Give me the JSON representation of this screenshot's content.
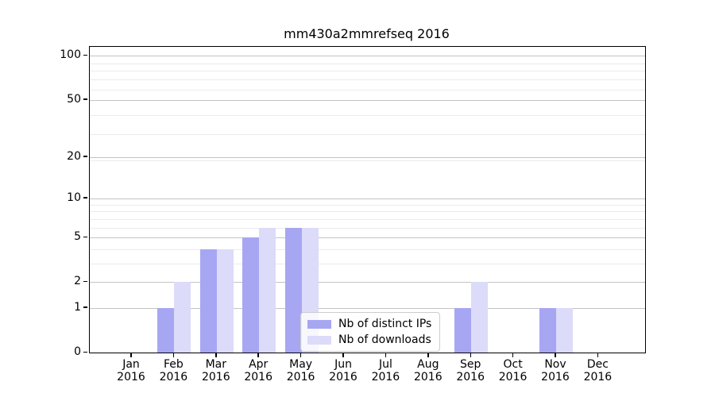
{
  "figure": {
    "title": "mm430a2mmrefseq 2016"
  },
  "chart_data": {
    "type": "bar",
    "title": "mm430a2mmrefseq 2016",
    "x_categories": [
      "Jan",
      "Feb",
      "Mar",
      "Apr",
      "May",
      "Jun",
      "Jul",
      "Aug",
      "Sep",
      "Oct",
      "Nov",
      "Dec"
    ],
    "x_year": "2016",
    "series": [
      {
        "name": "Nb of distinct IPs",
        "color": "#a7a6f3",
        "values": [
          0,
          1,
          4,
          5,
          6,
          0,
          0,
          0,
          1,
          0,
          1,
          0
        ]
      },
      {
        "name": "Nb of downloads",
        "color": "#dcdbf9",
        "values": [
          0,
          2,
          4,
          6,
          6,
          0,
          0,
          0,
          2,
          0,
          1,
          0
        ]
      }
    ],
    "y_axis": {
      "scale": "log10(value+1)",
      "tick_labels": [
        0,
        1,
        2,
        5,
        10,
        20,
        50,
        100
      ],
      "minor_gridlines": [
        3,
        4,
        6,
        7,
        8,
        9,
        19,
        29,
        39,
        59,
        69,
        79,
        89
      ],
      "ylim": [
        0,
        115
      ]
    },
    "legend": {
      "position": "lower center",
      "entries": [
        "Nb of distinct IPs",
        "Nb of downloads"
      ]
    },
    "grid": true,
    "colors": {
      "major_grid": "#c3c3c3",
      "minor_grid": "#ebebeb",
      "axis": "#000000",
      "background": "#ffffff"
    }
  }
}
